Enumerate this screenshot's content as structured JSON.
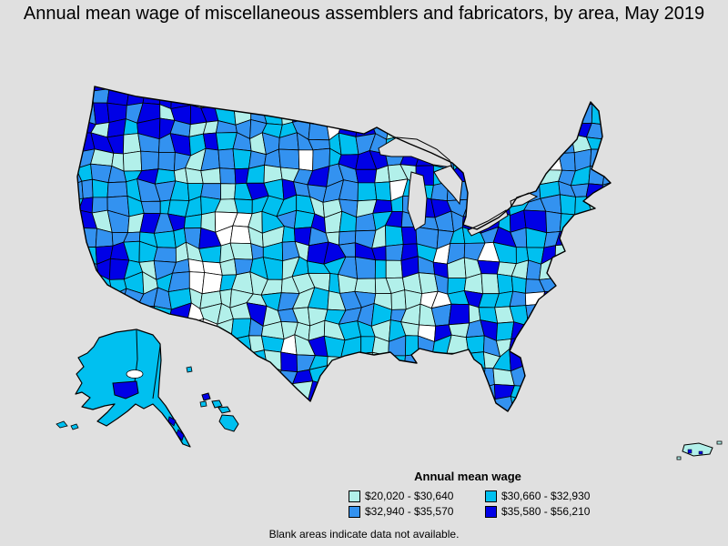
{
  "title": "Annual mean wage of miscellaneous assemblers and fabricators, by area, May 2019",
  "footnote": "Blank areas indicate data not available.",
  "colors": {
    "background": "#e0e0e0",
    "border": "#000000",
    "no_data": "#ffffff"
  },
  "legend": {
    "title": "Annual mean wage",
    "items": [
      {
        "label": "$20,020 - $30,640",
        "color": "#b2f0ea"
      },
      {
        "label": "$30,660 - $32,930",
        "color": "#00c0f0"
      },
      {
        "label": "$32,940 - $35,570",
        "color": "#3392f0"
      },
      {
        "label": "$35,580 - $56,210",
        "color": "#0000e6"
      }
    ]
  },
  "chart_data": {
    "type": "choropleth",
    "geography": "United States (including Alaska, Hawaii and Puerto Rico)",
    "title": "Annual mean wage of miscellaneous assemblers and fabricators, by area, May 2019",
    "legend_title": "Annual mean wage",
    "bins": [
      {
        "range": "$20,020 - $30,640",
        "min": 20020,
        "max": 30640,
        "color": "#b2f0ea"
      },
      {
        "range": "$30,660 - $32,930",
        "min": 30660,
        "max": 32930,
        "color": "#00c0f0"
      },
      {
        "range": "$32,940 - $35,570",
        "min": 32940,
        "max": 35570,
        "color": "#3392f0"
      },
      {
        "range": "$35,580 - $56,210",
        "min": 35580,
        "max": 56210,
        "color": "#0000e6"
      }
    ],
    "note": "Blank areas indicate data not available.",
    "legend_position": "bottom-right",
    "regional_pattern": {
      "pacific_northwest": "mostly $35,580 - $56,210",
      "north_central_ND_MN": "mostly $35,580 - $56,210",
      "west_CA_NV": "mostly $32,940 - $35,570",
      "southwest_TX_NM_AZ_OK": "mostly $20,020 - $30,640",
      "midwest_great_lakes": "dense mix of all four bins",
      "southeast": "mix of $20,020 - $30,640 and $30,660 - $32,930",
      "northeast": "mix of $32,940 - $35,570 and $35,580 - $56,210",
      "alaska": "$30,660 - $32,930 with Anchorage area $35,580 - $56,210",
      "hawaii": "$30,660 - $32,930 with Kauai area $35,580 - $56,210",
      "puerto_rico": "$20,020 - $30,640",
      "blank": "Wyoming area and central New Mexico strip blank (no data)"
    }
  }
}
